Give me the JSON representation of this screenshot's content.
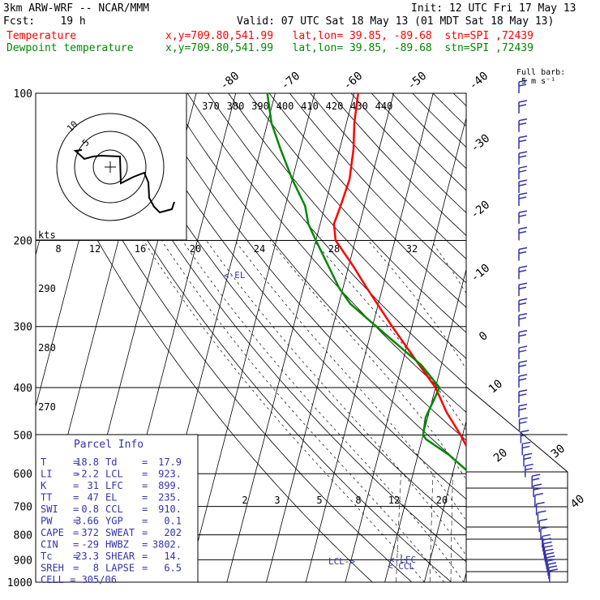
{
  "header": {
    "model": "3km ARW-WRF -- NCAR/MMM",
    "init": "Init: 12 UTC Fri 17 May 13",
    "fcst": "Fcst:    19 h",
    "valid": "Valid: 07 UTC Sat 18 May 13 (01 MDT Sat 18 May 13)",
    "temp_label": "Temperature",
    "dew_label": "Dewpoint temperature",
    "temp_loc": "x,y=709.80,541.99   lat,lon= 39.85, -89.68  stn=SPI ,72439",
    "dew_loc": "x,y=709.80,541.99   lat,lon= 39.85, -89.68  stn=SPI ,72439",
    "full_barb": "Full barb:",
    "full_barb_unit": "5 m s⁻¹",
    "kts": "kts"
  },
  "colors": {
    "temperature": "#ff0000",
    "dewpoint": "#008800",
    "wind": "#3333aa",
    "text": "#000000"
  },
  "chart_data": {
    "type": "line",
    "xlabel": "",
    "ylabel": "",
    "pressure_ticks": [
      100,
      200,
      300,
      400,
      500,
      600,
      700,
      800,
      900,
      1000
    ],
    "isotherm_labels": [
      -80,
      -70,
      -60,
      -50,
      -40,
      -30,
      -20,
      -10,
      0,
      10,
      20,
      30,
      40
    ],
    "theta_labels": [
      370,
      380,
      390,
      400,
      410,
      420,
      430,
      440
    ],
    "theta_left_labels": [
      290,
      280,
      270
    ],
    "mixing_ratio_upper": [
      8,
      12,
      16,
      20,
      24,
      28,
      32
    ],
    "mixing_ratio_lower": [
      2,
      3,
      5,
      8,
      12,
      20
    ],
    "hodograph_ring_labels": [
      "5",
      "10"
    ],
    "markers": {
      "el": "<-EL",
      "lcl": "LCL->",
      "lfc": "<-LFC",
      "ccl": "<-CCL"
    },
    "series": [
      {
        "name": "Temperature",
        "values": [
          [
            1000,
            19.0
          ],
          [
            980,
            21.5
          ],
          [
            960,
            19.0
          ],
          [
            925,
            17.0
          ],
          [
            900,
            15.5
          ],
          [
            850,
            12.5
          ],
          [
            800,
            10.0
          ],
          [
            750,
            7.0
          ],
          [
            700,
            4.0
          ],
          [
            650,
            0.5
          ],
          [
            600,
            -3.0
          ],
          [
            550,
            -6.5
          ],
          [
            500,
            -10.5
          ],
          [
            450,
            -15.5
          ],
          [
            400,
            -20.0
          ],
          [
            350,
            -27.0
          ],
          [
            300,
            -35.0
          ],
          [
            250,
            -44.0
          ],
          [
            225,
            -49.0
          ],
          [
            200,
            -55.0
          ],
          [
            185,
            -56.5
          ],
          [
            170,
            -56.0
          ],
          [
            150,
            -55.5
          ],
          [
            130,
            -56.5
          ],
          [
            115,
            -58.0
          ],
          [
            100,
            -59.0
          ]
        ]
      },
      {
        "name": "Dewpoint temperature",
        "values": [
          [
            1000,
            18.0
          ],
          [
            980,
            18.0
          ],
          [
            960,
            17.0
          ],
          [
            930,
            16.0
          ],
          [
            900,
            14.5
          ],
          [
            870,
            11.0
          ],
          [
            840,
            9.0
          ],
          [
            800,
            6.5
          ],
          [
            760,
            5.0
          ],
          [
            720,
            4.5
          ],
          [
            700,
            3.0
          ],
          [
            650,
            -1.0
          ],
          [
            600,
            -5.5
          ],
          [
            550,
            -12.0
          ],
          [
            510,
            -19.0
          ],
          [
            500,
            -20.0
          ],
          [
            460,
            -20.5
          ],
          [
            420,
            -19.5
          ],
          [
            400,
            -19.0
          ],
          [
            360,
            -25.0
          ],
          [
            300,
            -39.0
          ],
          [
            270,
            -47.0
          ],
          [
            250,
            -51.0
          ],
          [
            200,
            -60.0
          ],
          [
            185,
            -63.0
          ],
          [
            170,
            -65.0
          ],
          [
            150,
            -70.0
          ],
          [
            130,
            -75.0
          ],
          [
            115,
            -79.0
          ],
          [
            100,
            -82.0
          ]
        ]
      }
    ],
    "wind_profile_pressures": [
      1000,
      985,
      970,
      955,
      940,
      925,
      910,
      895,
      880,
      865,
      850,
      820,
      790,
      760,
      730,
      700,
      670,
      640,
      610,
      580,
      550,
      520,
      490,
      460,
      430,
      400,
      375,
      350,
      325,
      300,
      280,
      260,
      240,
      220,
      200,
      185,
      170,
      160,
      150,
      140,
      130,
      120,
      110,
      100
    ]
  },
  "parcel": {
    "title": "Parcel Info",
    "rows": [
      [
        "T",
        "18.8",
        "Td",
        "17.9"
      ],
      [
        "LI",
        "-2.2",
        "LCL",
        "923."
      ],
      [
        "K",
        "31",
        "LFC",
        "899."
      ],
      [
        "TT",
        "47",
        "EL",
        "235."
      ],
      [
        "SWI",
        "0.8",
        "CCL",
        "910."
      ],
      [
        "PW",
        "3.66",
        "YGP",
        "0.1"
      ],
      [
        "CAPE",
        "372",
        "SWEAT",
        "202"
      ],
      [
        "CIN",
        "-29",
        "HWBZ",
        "3802."
      ],
      [
        "Tc",
        "23.3",
        "SHEAR",
        "14."
      ],
      [
        "SREH",
        "8",
        "LAPSE",
        "6.5"
      ],
      [
        "CELL",
        "305/06",
        "",
        ""
      ]
    ]
  }
}
